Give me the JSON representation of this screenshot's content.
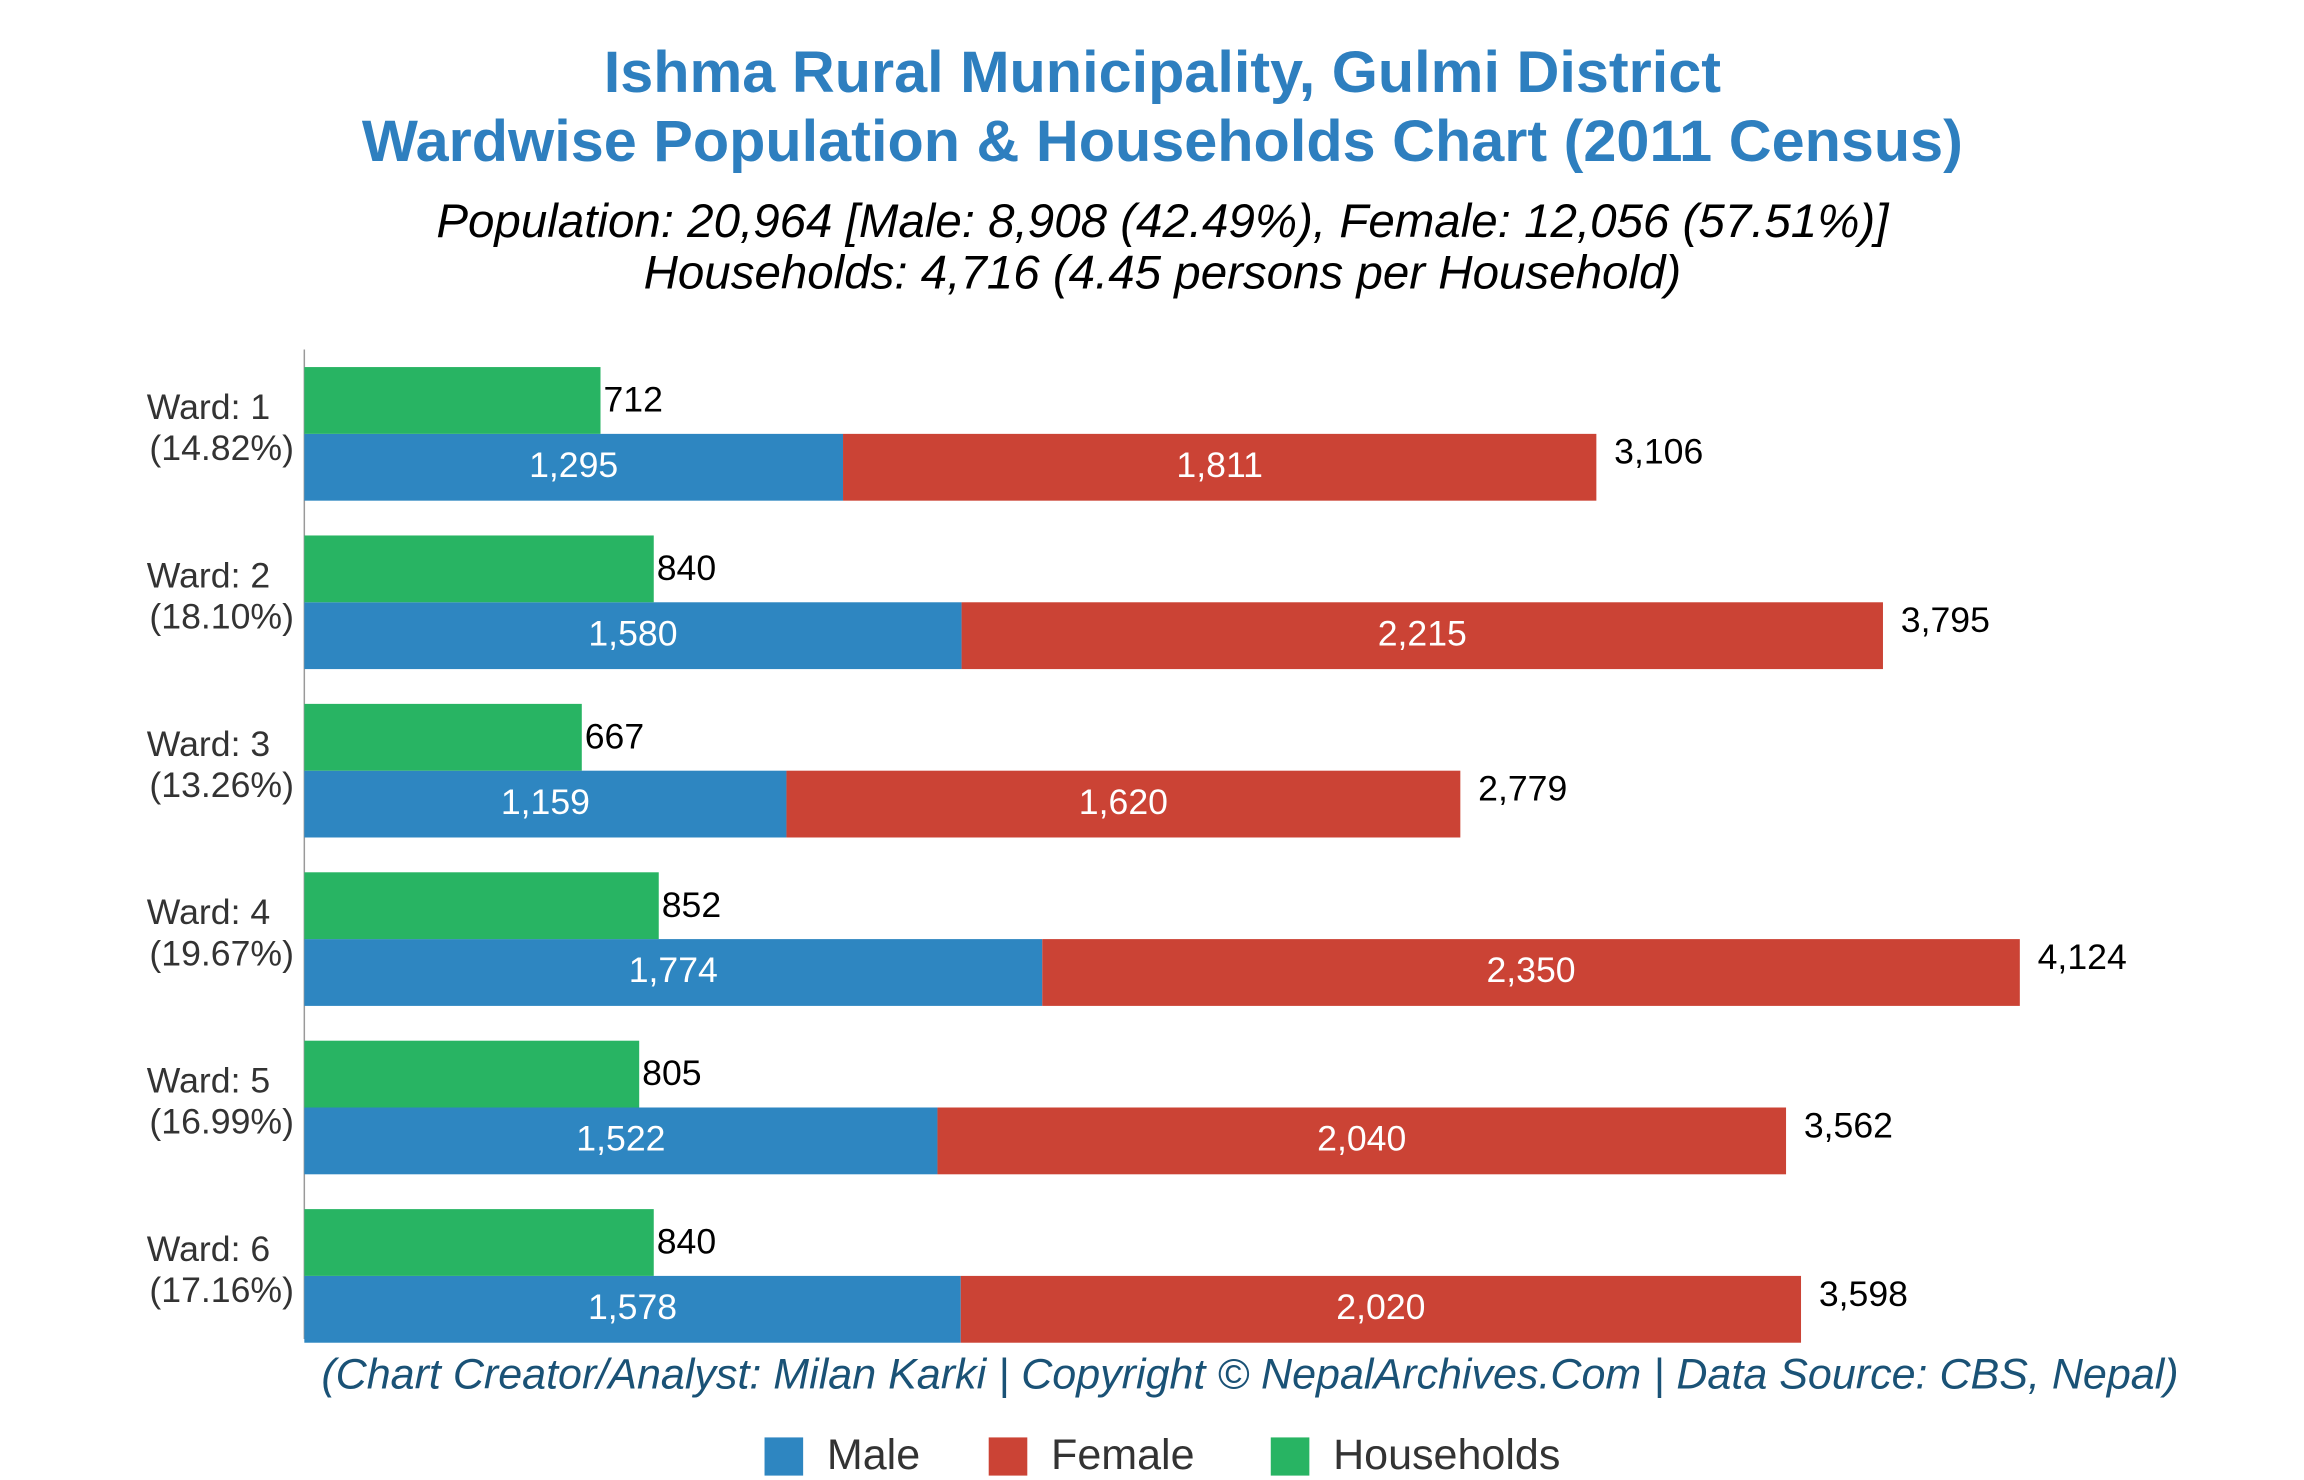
{
  "chart_data": {
    "type": "bar",
    "orientation": "horizontal",
    "title": [
      "Ishma Rural Municipality, Gulmi District",
      "Wardwise Population & Households Chart (2011 Census)"
    ],
    "subtitle": [
      "Population: 20,964 [Male: 8,908 (42.49%), Female: 12,056 (57.51%)]",
      "Households: 4,716 (4.45 persons per Household)"
    ],
    "note": "(Chart Creator/Analyst: Milan Karki | Copyright © NepalArchives.Com | Data Source: CBS, Nepal)",
    "categories": [
      "Ward: 1",
      "Ward: 2",
      "Ward: 3",
      "Ward: 4",
      "Ward: 5",
      "Ward: 6"
    ],
    "category_shares": [
      "(14.82%)",
      "(18.10%)",
      "(13.26%)",
      "(19.67%)",
      "(16.99%)",
      "(17.16%)"
    ],
    "xlim": [
      0,
      4800
    ],
    "legend": "bottom",
    "series": [
      {
        "name": "Male",
        "color": "#2e86c1",
        "group": "population",
        "values": [
          1295,
          1580,
          1159,
          1774,
          1522,
          1578
        ],
        "value_labels": [
          "1,295",
          "1,580",
          "1,159",
          "1,774",
          "1,522",
          "1,578"
        ]
      },
      {
        "name": "Female",
        "color": "#cb4335",
        "group": "population",
        "values": [
          1811,
          2215,
          1620,
          2350,
          2040,
          2020
        ],
        "value_labels": [
          "1,811",
          "2,215",
          "1,620",
          "2,350",
          "2,040",
          "2,020"
        ]
      },
      {
        "name": "Households",
        "color": "#28b463",
        "group": "households",
        "values": [
          712,
          840,
          667,
          852,
          805,
          840
        ],
        "value_labels": [
          "712",
          "840",
          "667",
          "852",
          "805",
          "840"
        ]
      }
    ],
    "totals": [
      3106,
      3795,
      2779,
      4124,
      3562,
      3598
    ],
    "total_labels": [
      "3,106",
      "3,795",
      "2,779",
      "4,124",
      "3,562",
      "3,598"
    ]
  }
}
